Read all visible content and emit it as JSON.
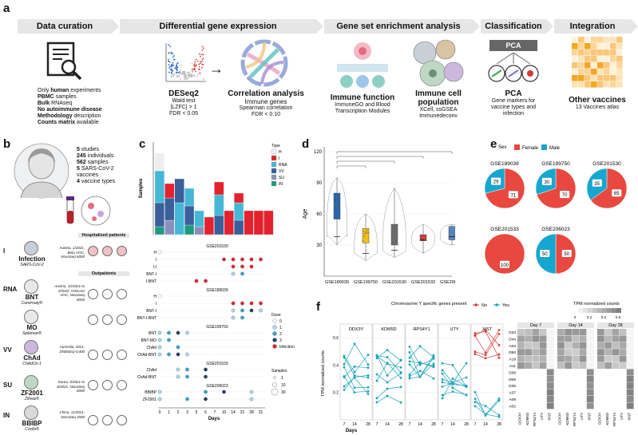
{
  "panel_labels": {
    "a": "a",
    "b": "b",
    "c": "c",
    "d": "d",
    "e": "e",
    "f": "f"
  },
  "panel_a": {
    "stages": [
      "Data curation",
      "Differential gene expression",
      "Gene set enrichment analysis",
      "Classification",
      "Integration"
    ],
    "curation_lines": [
      {
        "pre": "Only ",
        "bold": "human",
        "post": " experiments"
      },
      {
        "pre": "",
        "bold": "PBMC",
        "post": " samples"
      },
      {
        "pre": "",
        "bold": "Bulk",
        "post": " RNAseq"
      },
      {
        "pre": "",
        "bold": "No autoimmune disease",
        "post": ""
      },
      {
        "pre": "",
        "bold": "Methodology",
        "post": " description"
      },
      {
        "pre": "",
        "bold": "Counts matrix",
        "post": " available"
      }
    ],
    "deseq": {
      "title": "DESeq2",
      "lines": [
        "Wald test",
        "|LZFC| > 1",
        "FDR < 0.05"
      ]
    },
    "correlation": {
      "title": "Correlation analysis",
      "lines": [
        "Immune genes",
        "Spearman correlation",
        "FDR < 0.10"
      ]
    },
    "immune_function": {
      "title": "Immune function",
      "lines": [
        "ImmuneGO and Blood",
        "Transcription Modules"
      ]
    },
    "immune_cell": {
      "title": "Immune cell",
      "title2": "population",
      "lines": [
        "XCell, ssGSEA",
        "Immunedeconv"
      ]
    },
    "pca": {
      "box": "PCA",
      "title": "PCA",
      "lines": [
        "Gene markers for",
        "vaccine types and",
        "infection"
      ]
    },
    "other_vaccines": {
      "title": "Other vaccines",
      "lines": [
        "13 Vaccines atlas"
      ]
    }
  },
  "panel_b": {
    "stats": [
      {
        "n": "5",
        "t": " studies"
      },
      {
        "n": "245",
        "t": " individuals"
      },
      {
        "n": "562",
        "t": " samples"
      },
      {
        "n": "5",
        "t": " SARS-CoV-2"
      },
      {
        "n": "",
        "t": "vaccines"
      },
      {
        "n": "4",
        "t": " vaccine types"
      }
    ],
    "rows": [
      {
        "type": "I",
        "name": "Infection",
        "sub": "SARS-CoV-2",
        "where": "Austria, 1/2021, Beta VOC, NovaSeq 6000"
      },
      {
        "type": "RNA",
        "name": "BNT",
        "sub": "Comirnaty®",
        "where": "Austria, 12/2021 to 2/2022, Omicron VOC, NovaSeq 6000"
      },
      {
        "type": "",
        "name": "MO",
        "sub": "Spikevax®",
        "where": ""
      },
      {
        "type": "VV",
        "name": "ChAd",
        "sub": "ChAdOx-1",
        "where": "Australia, 2021, DNBSEQ-G400"
      },
      {
        "type": "SU",
        "name": "ZF2001",
        "sub": "Zifivax®",
        "where": "Korea, 5/2021 to 8/2021, NovaSeq 6000"
      },
      {
        "type": "IN",
        "name": "BBIBP",
        "sub": "Covilo®",
        "where": "China, 11/2021, NovaSeq 2000"
      }
    ],
    "hospitalized": "Hospitalized patients",
    "outpatients": "Outpatients"
  },
  "panel_c": {
    "ylabel": "Samples",
    "xlabel": "Days",
    "legend_title": "Type",
    "legend": [
      {
        "label": "H",
        "color": "#eeeeee"
      },
      {
        "label": "I",
        "color": "#e3222d"
      },
      {
        "label": "RNA",
        "color": "#47b7d6"
      },
      {
        "label": "VV",
        "color": "#3a5f9a"
      },
      {
        "label": "SU",
        "color": "#8b8fbd"
      },
      {
        "label": "IN",
        "color": "#1e9a7c"
      }
    ],
    "dose_title": "Dose",
    "dose_legend": [
      {
        "label": "0",
        "color": "#ffffff"
      },
      {
        "label": "1",
        "color": "#a6d9ee"
      },
      {
        "label": "2",
        "color": "#3ba3cf"
      },
      {
        "label": "3",
        "color": "#1f3d66"
      },
      {
        "label": "Infection",
        "color": "#e3222d"
      }
    ],
    "samples_title": "Samples",
    "samples_legend": [
      "1",
      "10",
      "30"
    ],
    "x_ticks": [
      "0",
      "1",
      "2",
      "3",
      "5",
      "6",
      "7",
      "10",
      "14",
      "21",
      "28",
      "31"
    ],
    "studies": [
      {
        "name": "GSE201530",
        "rows": [
          "H",
          "I",
          "I-I",
          "BNT-I",
          "I-BNT"
        ]
      },
      {
        "name": "GSE189039",
        "rows": [
          "H",
          "I",
          "BNT-I",
          "BNT-I-BNT"
        ]
      },
      {
        "name": "GSE199750",
        "rows": [
          "BNT",
          "BNT-MO",
          "ChAd",
          "ChAd-BNT"
        ]
      },
      {
        "name": "GSE201533",
        "rows": [
          "ChAd",
          "ChAd-BNT"
        ]
      },
      {
        "name": "GSE206023",
        "rows": [
          "BBIBP",
          "ZF2001"
        ]
      }
    ]
  },
  "panel_d": {
    "ylabel": "Age",
    "y_ticks": [
      "30",
      "60",
      "90",
      "120"
    ],
    "groups": [
      "GSE189039",
      "GSE199750",
      "GSE201530",
      "GSE201533",
      "GSE206023"
    ],
    "colors": [
      "#2a66a8",
      "#f0bf1a",
      "#6b6b6b",
      "#d63c35",
      "#5b86c4"
    ]
  },
  "panel_e": {
    "legend_title": "Sex",
    "legend": [
      {
        "label": "Female",
        "color": "#e8483f"
      },
      {
        "label": "Male",
        "color": "#17a6cf"
      }
    ],
    "chart_data": [
      {
        "type": "pie",
        "title": "GSE189039",
        "categories": [
          "Female",
          "Male"
        ],
        "values": [
          71,
          29
        ]
      },
      {
        "type": "pie",
        "title": "GSE199750",
        "categories": [
          "Female",
          "Male"
        ],
        "values": [
          70,
          30
        ]
      },
      {
        "type": "pie",
        "title": "GSE201530",
        "categories": [
          "Female",
          "Male"
        ],
        "values": [
          65,
          35
        ]
      },
      {
        "type": "pie",
        "title": "GSE201533",
        "categories": [
          "Female",
          "Male"
        ],
        "values": [
          100,
          0
        ]
      },
      {
        "type": "pie",
        "title": "GSE206023",
        "categories": [
          "Female",
          "Male"
        ],
        "values": [
          50,
          50
        ]
      }
    ]
  },
  "panel_f": {
    "legend_title": "Chromosome Y specific genes present",
    "legend": [
      {
        "label": "No",
        "color": "#d63c35"
      },
      {
        "label": "Yes",
        "color": "#1aa3b8"
      }
    ],
    "heat_title": "TPM normalized counts",
    "heat_ticks": [
      "0",
      "0.2",
      "0.4",
      "0.6"
    ],
    "genes": [
      "DDX3Y",
      "KDM5D",
      "RPS4Y1",
      "UTY",
      "XIST"
    ],
    "ylabel": "TPM normalized counts",
    "y_ticks": [
      "0.2",
      "0.4",
      "0.6"
    ],
    "x_ticks": [
      "7",
      "14",
      "28"
    ],
    "xlabel": "Days",
    "days": [
      "Day 7",
      "Day 14",
      "Day 28"
    ],
    "heat_rows": [
      "D33",
      "D44",
      "A03",
      "D50",
      "A19",
      "A11",
      "D38",
      "D06",
      "D35",
      "A37",
      "A09",
      "A02"
    ],
    "heat_cols": [
      "DDX3Y",
      "KDM5D",
      "RPS4Y1",
      "UTY",
      "XIST"
    ]
  }
}
